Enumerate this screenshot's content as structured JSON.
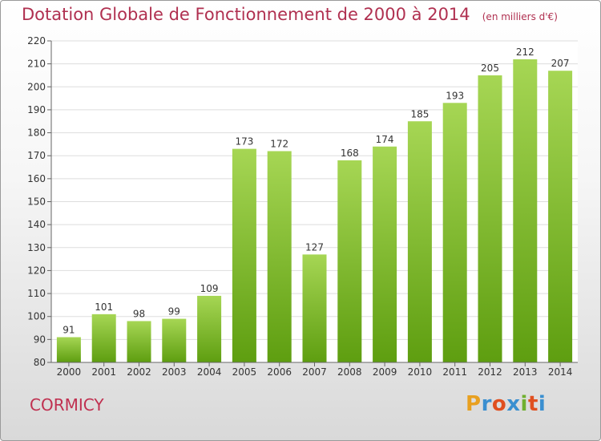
{
  "header": {
    "title": "Dotation Globale de Fonctionnement de 2000 à 2014",
    "unit_note": "(en milliers d'€)"
  },
  "footer": {
    "commune": "CORMICY",
    "logo_text": "Proxiti",
    "logo_colors": [
      "#e8a020",
      "#3a8fd0",
      "#e05020",
      "#3a8fd0",
      "#70b030",
      "#e05020",
      "#3a8fd0"
    ]
  },
  "colors": {
    "title": "#b03050",
    "bar_top": "#a6d654",
    "bar_bottom": "#5e9e10",
    "grid": "#dddddd",
    "axis": "#666666"
  },
  "chart_data": {
    "type": "bar",
    "title": "Dotation Globale de Fonctionnement de 2000 à 2014",
    "subtitle": "(en milliers d'€)",
    "categories": [
      "2000",
      "2001",
      "2002",
      "2003",
      "2004",
      "2005",
      "2006",
      "2007",
      "2008",
      "2009",
      "2010",
      "2011",
      "2012",
      "2013",
      "2014"
    ],
    "values": [
      91,
      101,
      98,
      99,
      109,
      173,
      172,
      127,
      168,
      174,
      185,
      193,
      205,
      212,
      207
    ],
    "ylim": [
      80,
      220
    ],
    "yticks": [
      80,
      90,
      100,
      110,
      120,
      130,
      140,
      150,
      160,
      170,
      180,
      190,
      200,
      210,
      220
    ],
    "grid": true,
    "data_labels": true,
    "xlabel": "",
    "ylabel": ""
  }
}
